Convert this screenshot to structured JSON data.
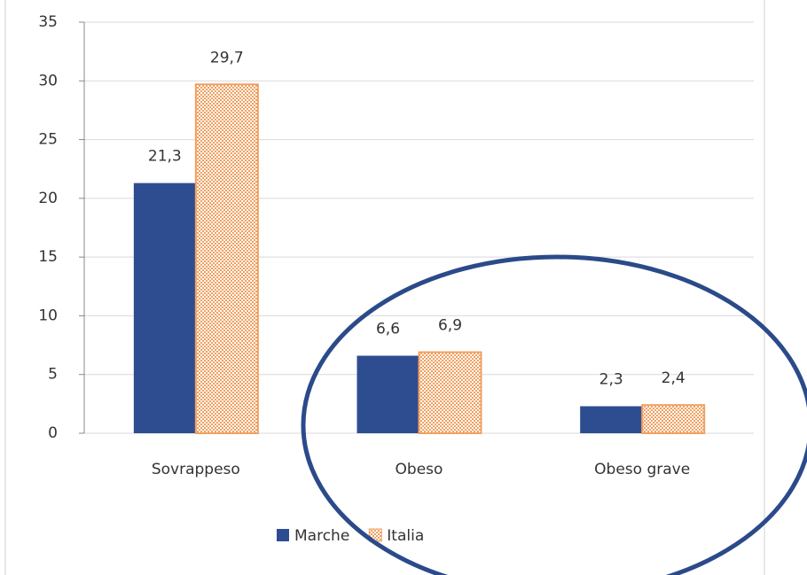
{
  "chart_data": {
    "type": "bar",
    "categories": [
      "Sovrappeso",
      "Obeso",
      "Obeso grave"
    ],
    "series": [
      {
        "name": "Marche",
        "color": "#2e4d91",
        "values": [
          21.3,
          6.6,
          2.3
        ],
        "value_labels": [
          "21,3",
          "6,6",
          "2,3"
        ]
      },
      {
        "name": "Italia",
        "color": "#f0a060",
        "pattern": "checker",
        "values": [
          29.7,
          6.9,
          2.4
        ],
        "value_labels": [
          "29,7",
          "6,9",
          "2,4"
        ]
      }
    ],
    "ylim": [
      0,
      35
    ],
    "yticks": [
      0,
      5,
      10,
      15,
      20,
      25,
      30,
      35
    ],
    "grid": true,
    "legend": "bottom"
  }
}
